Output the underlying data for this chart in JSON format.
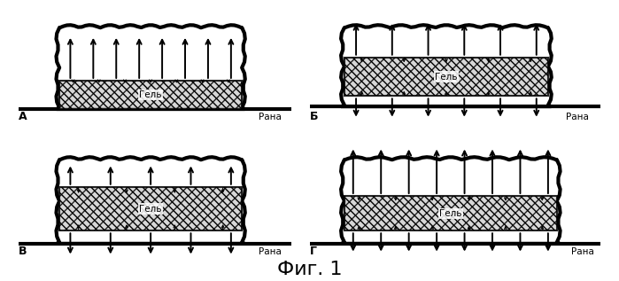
{
  "title": "Фиг. 1",
  "title_fontsize": 16,
  "panel_labels": [
    "А",
    "Б",
    "В",
    "Г"
  ],
  "rana_label": "Рана",
  "gel_label": "Гель",
  "bg_color": "#ffffff"
}
